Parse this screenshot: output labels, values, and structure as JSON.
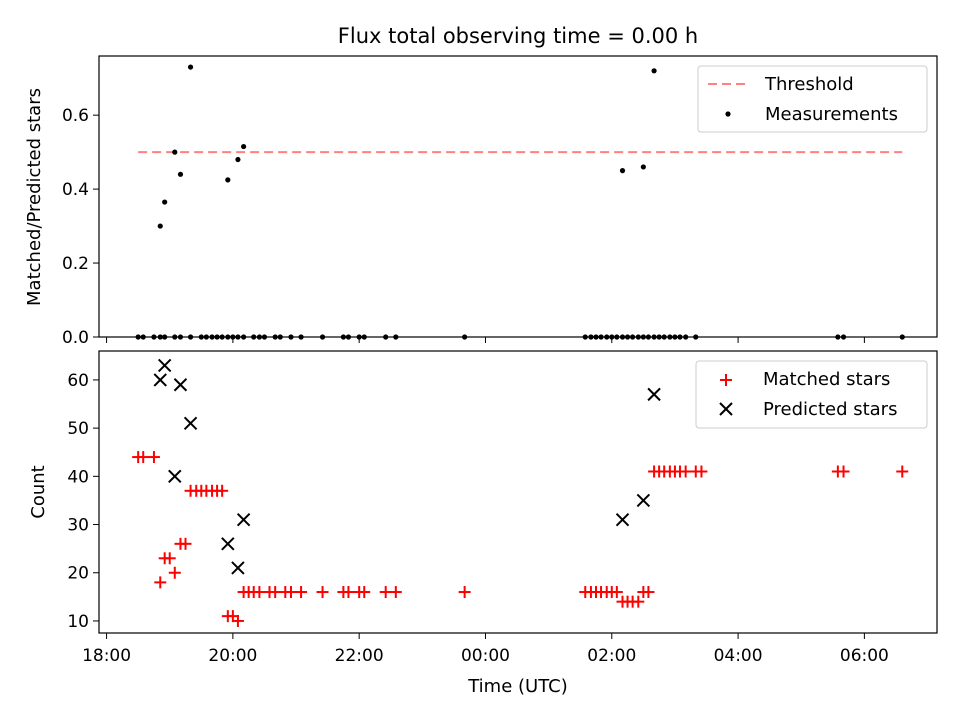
{
  "title": "Flux total observing time = 0.00 h",
  "colors": {
    "threshold": "#ff8080",
    "measurement": "#000000",
    "matched": "#ff0000",
    "predicted": "#000000"
  },
  "chart_data": [
    {
      "type": "scatter",
      "ylabel": "Matched/Predicted stars",
      "xlabel": "",
      "ylim": [
        0,
        0.76
      ],
      "yticks": [
        0.0,
        0.2,
        0.4,
        0.6
      ],
      "ytick_labels": [
        "0.0",
        "0.2",
        "0.4",
        "0.6"
      ],
      "xlim_hours": [
        17.88,
        31.15
      ],
      "xticks_hours": [
        18,
        20,
        22,
        24,
        26,
        28,
        30
      ],
      "legend": {
        "position": "top-right",
        "entries": [
          "Threshold",
          "Measurements"
        ]
      },
      "threshold": {
        "name": "Threshold",
        "value": 0.5,
        "x_start_hours": 18.5,
        "x_end_hours": 30.6
      },
      "series": [
        {
          "name": "Measurements",
          "x_hours": [
            18.5,
            18.58,
            18.75,
            18.85,
            18.92,
            19.08,
            19.17,
            19.33,
            19.5,
            19.58,
            19.67,
            19.75,
            19.83,
            19.92,
            20.0,
            20.08,
            20.17,
            20.33,
            20.42,
            20.5,
            20.67,
            20.75,
            20.92,
            21.08,
            21.42,
            21.75,
            21.83,
            22.0,
            22.08,
            22.42,
            22.58,
            23.67,
            25.58,
            25.67,
            25.75,
            25.83,
            25.92,
            26.0,
            26.08,
            26.17,
            26.25,
            26.33,
            26.42,
            26.5,
            26.58,
            26.67,
            26.75,
            26.83,
            26.92,
            27.0,
            27.08,
            27.17,
            27.33,
            29.58,
            29.67,
            30.6,
            18.85,
            18.92,
            19.08,
            19.17,
            19.33,
            19.92,
            20.08,
            20.17,
            26.17,
            26.5,
            26.67
          ],
          "y": [
            0,
            0,
            0,
            0,
            0,
            0,
            0,
            0,
            0,
            0,
            0,
            0,
            0,
            0,
            0,
            0,
            0,
            0,
            0,
            0,
            0,
            0,
            0,
            0,
            0,
            0,
            0,
            0,
            0,
            0,
            0,
            0,
            0,
            0,
            0,
            0,
            0,
            0,
            0,
            0,
            0,
            0,
            0,
            0,
            0,
            0,
            0,
            0,
            0,
            0,
            0,
            0,
            0,
            0,
            0,
            0,
            0.3,
            0.365,
            0.5,
            0.44,
            0.73,
            0.425,
            0.48,
            0.515,
            0.45,
            0.46,
            0.72
          ]
        }
      ]
    },
    {
      "type": "scatter",
      "ylabel": "Count",
      "xlabel": "Time (UTC)",
      "ylim": [
        7.5,
        66
      ],
      "yticks": [
        10,
        20,
        30,
        40,
        50,
        60
      ],
      "ytick_labels": [
        "10",
        "20",
        "30",
        "40",
        "50",
        "60"
      ],
      "xlim_hours": [
        17.88,
        31.15
      ],
      "xticks_hours": [
        18,
        20,
        22,
        24,
        26,
        28,
        30
      ],
      "xtick_labels": [
        "18:00",
        "20:00",
        "22:00",
        "00:00",
        "02:00",
        "04:00",
        "06:00"
      ],
      "legend": {
        "position": "top-right",
        "entries": [
          "Matched stars",
          "Predicted stars"
        ]
      },
      "series": [
        {
          "name": "Matched stars",
          "marker": "plus",
          "x_hours": [
            18.5,
            18.58,
            18.75,
            18.85,
            18.92,
            19.0,
            19.08,
            19.17,
            19.25,
            19.33,
            19.42,
            19.5,
            19.58,
            19.67,
            19.75,
            19.83,
            19.92,
            20.0,
            20.08,
            20.17,
            20.25,
            20.33,
            20.42,
            20.58,
            20.67,
            20.83,
            20.92,
            21.08,
            21.42,
            21.75,
            21.83,
            22.0,
            22.08,
            22.42,
            22.58,
            23.67,
            25.58,
            25.67,
            25.75,
            25.83,
            25.92,
            26.0,
            26.08,
            26.17,
            26.25,
            26.33,
            26.42,
            26.5,
            26.58,
            26.67,
            26.75,
            26.83,
            26.92,
            27.0,
            27.08,
            27.17,
            27.33,
            27.42,
            29.58,
            29.67,
            30.6
          ],
          "y": [
            44,
            44,
            44,
            18,
            23,
            23,
            20,
            26,
            26,
            37,
            37,
            37,
            37,
            37,
            37,
            37,
            11,
            11,
            10,
            16,
            16,
            16,
            16,
            16,
            16,
            16,
            16,
            16,
            16,
            16,
            16,
            16,
            16,
            16,
            16,
            16,
            16,
            16,
            16,
            16,
            16,
            16,
            16,
            14,
            14,
            14,
            14,
            16,
            16,
            41,
            41,
            41,
            41,
            41,
            41,
            41,
            41,
            41,
            41,
            41,
            41
          ]
        },
        {
          "name": "Predicted stars",
          "marker": "x",
          "x_hours": [
            18.85,
            18.92,
            19.08,
            19.17,
            19.33,
            19.92,
            20.08,
            20.17,
            26.17,
            26.5,
            26.67
          ],
          "y": [
            60,
            63,
            40,
            59,
            51,
            26,
            21,
            31,
            31,
            35,
            57
          ]
        }
      ]
    }
  ]
}
